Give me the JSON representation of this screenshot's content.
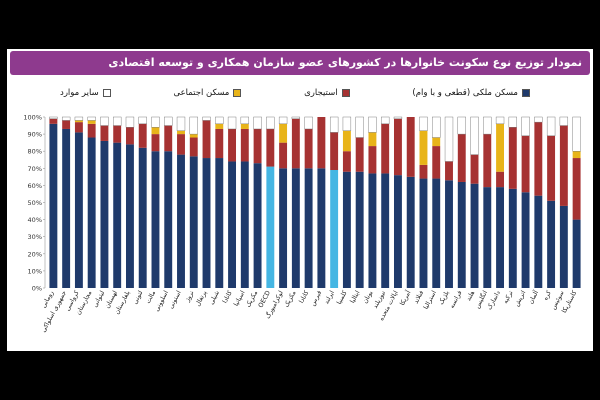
{
  "title": "نمودار توزیع نوع سکونت خانوارها در کشورهای عضو سازمان همکاری و توسعه اقتصادی",
  "colors": {
    "owned": "#1f3a6b",
    "rent": "#a63232",
    "social": "#e8b419",
    "other": "#ffffff",
    "highlight": "#45b6e3",
    "title_bg": "#8e3a8e"
  },
  "chart_data": {
    "type": "bar",
    "stacked": true,
    "ylim": [
      0,
      100
    ],
    "yticks": [
      "0%",
      "10%",
      "20%",
      "30%",
      "40%",
      "50%",
      "60%",
      "70%",
      "80%",
      "90%",
      "100%"
    ],
    "legend": [
      "مسکن ملکی (قطعی و با وام)",
      "استیجاری",
      "مسکن اجتماعی",
      "سایر موارد"
    ],
    "categories": [
      "رومانی",
      "جمهوری اسلواکی",
      "کرواسی",
      "مجارستان",
      "لیتوانی",
      "لهستان",
      "بلغارستان",
      "لتونی",
      "مالت",
      "اسلوونی",
      "استونی",
      "نروژ",
      "پرتغال",
      "شیلی",
      "کانادا",
      "اسپانیا",
      "مکزیک",
      "OECD",
      "لوکزامبورگ",
      "مکزیک",
      "کانادا",
      "قبرس",
      "ایرلند",
      "کلمبیا",
      "ایتالیا",
      "یونان",
      "نیوزیلند",
      "ایالات متحده",
      "آمریکا",
      "فنلاند",
      "استرالیا",
      "بلژیک",
      "فرانسه",
      "هلند",
      "انگلیس",
      "دانمارک",
      "ترکیه",
      "اتریش",
      "آلمان",
      "کره",
      "سوئیس",
      "کاستاریکا"
    ],
    "highlight_index": [
      17,
      22
    ],
    "series": [
      {
        "name": "مسکن ملکی (قطعی و با وام)",
        "values": [
          96,
          93,
          91,
          88,
          86,
          85,
          84,
          82,
          80,
          80,
          78,
          77,
          76,
          76,
          74,
          74,
          73,
          71,
          70,
          70,
          70,
          70,
          69,
          68,
          68,
          67,
          67,
          66,
          65,
          64,
          64,
          63,
          62,
          61,
          59,
          59,
          58,
          56,
          54,
          51,
          48,
          40
        ]
      },
      {
        "name": "استیجاری",
        "values": [
          3,
          5,
          6,
          8,
          9,
          10,
          10,
          14,
          10,
          15,
          12,
          11,
          22,
          17,
          19,
          19,
          20,
          22,
          15,
          29,
          23,
          30,
          22,
          12,
          20,
          16,
          29,
          33,
          35,
          8,
          19,
          11,
          28,
          17,
          31,
          9,
          36,
          33,
          43,
          38,
          47,
          36
        ]
      },
      {
        "name": "مسکن اجتماعی",
        "values": [
          0,
          0,
          1,
          2,
          0,
          0,
          0,
          0,
          4,
          0,
          2,
          2,
          0,
          3,
          0,
          3,
          0,
          0,
          11,
          0,
          0,
          0,
          0,
          12,
          0,
          8,
          0,
          0,
          0,
          20,
          5,
          0,
          0,
          0,
          0,
          28,
          0,
          0,
          0,
          0,
          0,
          4
        ]
      },
      {
        "name": "سایر موارد",
        "values": [
          1,
          2,
          2,
          2,
          5,
          5,
          6,
          4,
          6,
          5,
          8,
          10,
          2,
          4,
          7,
          4,
          7,
          7,
          4,
          1,
          7,
          0,
          9,
          8,
          12,
          9,
          4,
          1,
          0,
          8,
          12,
          26,
          10,
          22,
          10,
          4,
          6,
          11,
          3,
          11,
          5,
          20
        ]
      }
    ]
  }
}
